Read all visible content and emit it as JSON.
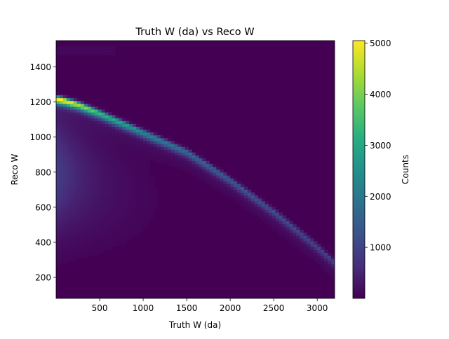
{
  "chart_data": {
    "type": "heatmap",
    "title": "Truth W (da) vs Reco W",
    "xlabel": "Truth W (da)",
    "ylabel": "Reco W",
    "xlim": [
      0,
      3200
    ],
    "ylim": [
      80,
      1550
    ],
    "x_ticks": [
      "500",
      "1000",
      "1500",
      "2000",
      "2500",
      "3000"
    ],
    "x_tick_values": [
      500,
      1000,
      1500,
      2000,
      2500,
      3000
    ],
    "y_ticks": [
      "200",
      "400",
      "600",
      "800",
      "1000",
      "1200",
      "1400"
    ],
    "y_tick_values": [
      200,
      400,
      600,
      800,
      1000,
      1200,
      1400
    ],
    "colormap": "viridis",
    "colorbar": {
      "label": "Counts",
      "range": [
        0,
        5050
      ],
      "ticks": [
        "1000",
        "2000",
        "3000",
        "4000",
        "5000"
      ],
      "tick_values": [
        1000,
        2000,
        3000,
        4000,
        5000
      ]
    },
    "grid": false,
    "ridge": {
      "description_points_x": [
        30,
        250,
        500,
        1000,
        1500,
        2000,
        2500,
        3000,
        3200
      ],
      "description_points_y": [
        1220,
        1190,
        1140,
        1030,
        920,
        760,
        580,
        380,
        290
      ],
      "peak_counts": [
        5050,
        4300,
        3200,
        2100,
        1500,
        1200,
        1000,
        800,
        700
      ]
    }
  }
}
